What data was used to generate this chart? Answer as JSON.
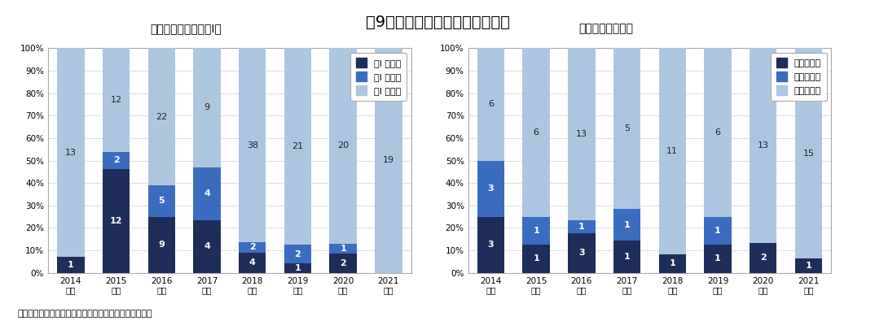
{
  "title": "図9　外国平均価格調整適用状況",
  "source_text": "出所：中医協資料をもとに医薬産業政策研究所にて作成",
  "years": [
    "2014\n年度",
    "2015\n年度",
    "2016\n年度",
    "2017\n年度",
    "2018\n年度",
    "2019\n年度",
    "2020\n年度",
    "2021\n年度"
  ],
  "left_subtitle": "（類似薬効比較方式Ⅰ）",
  "left_legend": [
    "類Ⅰ 引上げ",
    "類Ⅰ 引下げ",
    "類Ⅰ 対象外"
  ],
  "left_raise": [
    1,
    12,
    9,
    4,
    4,
    1,
    2,
    0
  ],
  "left_lower": [
    0,
    2,
    5,
    4,
    2,
    2,
    1,
    0
  ],
  "left_other": [
    13,
    12,
    22,
    9,
    38,
    21,
    20,
    19
  ],
  "right_subtitle": "（原価計算方式）",
  "right_legend": [
    "原価引上げ",
    "原価引下げ",
    "原価対象外"
  ],
  "right_raise": [
    3,
    1,
    3,
    1,
    1,
    1,
    2,
    1
  ],
  "right_lower": [
    3,
    1,
    1,
    1,
    0,
    1,
    0,
    0
  ],
  "right_other": [
    6,
    6,
    13,
    5,
    11,
    6,
    13,
    15
  ],
  "color_raise": "#1f2d5a",
  "color_lower": "#3a6dbf",
  "color_other": "#adc6e0",
  "bg_color": "#ffffff",
  "border_color": "#aaaaaa",
  "label_fontsize": 8,
  "title_fontsize": 14,
  "tick_fontsize": 7.5,
  "subtitle_fontsize": 10,
  "legend_fontsize": 8
}
